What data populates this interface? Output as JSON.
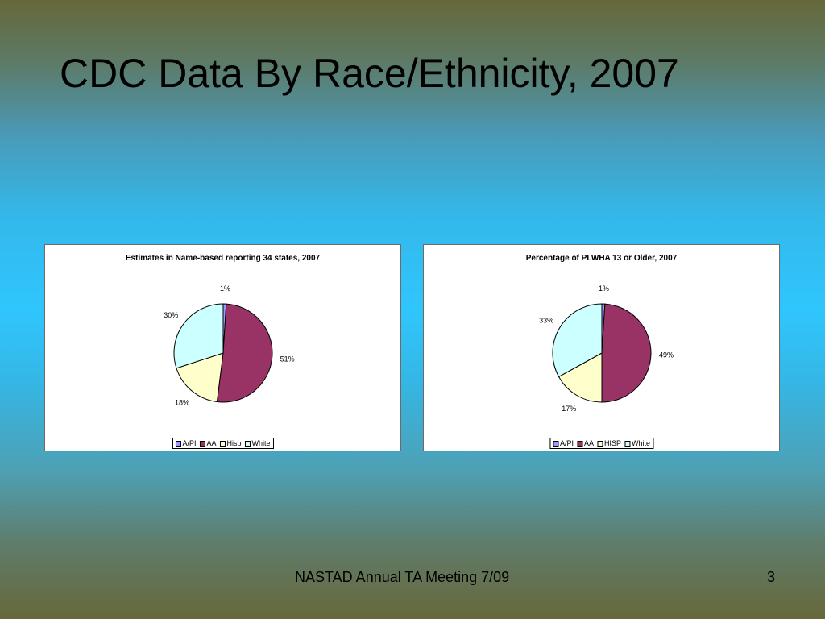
{
  "slide": {
    "title": "CDC Data By Race/Ethnicity, 2007",
    "footer": "NASTAD Annual TA Meeting 7/09",
    "page_number": "3"
  },
  "colors": {
    "A/PI": "#9999ff",
    "AA": "#993366",
    "Hisp": "#ffffcc",
    "White": "#ccffff"
  },
  "chart_data": [
    {
      "type": "pie",
      "title": "Estimates in Name-based reporting 34 states, 2007",
      "categories": [
        "A/PI",
        "AA",
        "Hisp",
        "White"
      ],
      "values": [
        1,
        51,
        18,
        30
      ],
      "data_labels": [
        "1%",
        "51%",
        "18%",
        "30%"
      ],
      "legend": [
        "A/PI",
        "AA",
        "Hisp",
        "White"
      ],
      "legend_position": "bottom"
    },
    {
      "type": "pie",
      "title": "Percentage of PLWHA 13 or Older, 2007",
      "categories": [
        "A/PI",
        "AA",
        "HISP",
        "White"
      ],
      "values": [
        1,
        49,
        17,
        33
      ],
      "data_labels": [
        "1%",
        "49%",
        "17%",
        "33%"
      ],
      "legend": [
        "A/PI",
        "AA",
        "HISP",
        "White"
      ],
      "legend_position": "bottom"
    }
  ]
}
